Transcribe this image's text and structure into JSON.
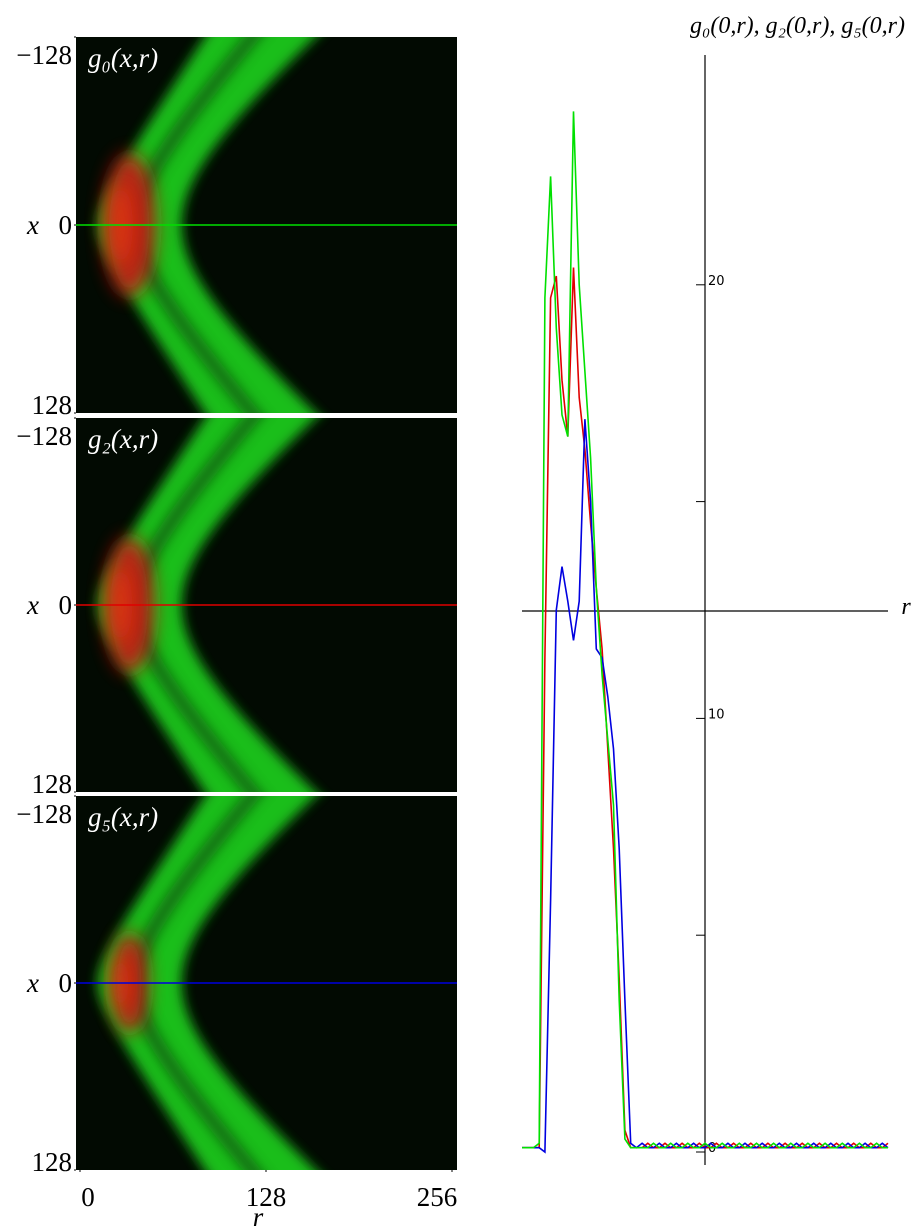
{
  "chart_data": [
    {
      "type": "heatmap",
      "title": "g₀(x,r)",
      "ylabel": "x",
      "ylim": [
        -128,
        128
      ],
      "yticks": [
        {
          "value": -128,
          "label": "−128"
        },
        0,
        128
      ],
      "slice_color": "#00e000"
    },
    {
      "type": "heatmap",
      "title": "g₂(x,r)",
      "ylabel": "x",
      "ylim": [
        -128,
        128
      ],
      "yticks": [
        {
          "value": -128,
          "label": "−128"
        },
        0,
        128
      ],
      "slice_color": "#e00000"
    },
    {
      "type": "heatmap",
      "title": "g₅(x,r)",
      "ylabel": "x",
      "xlabel": "r",
      "ylim": [
        -128,
        128
      ],
      "yticks": [
        {
          "value": -128,
          "label": "−128"
        },
        0,
        128
      ],
      "xlim": [
        0,
        256
      ],
      "xticks": [
        0,
        128,
        256
      ],
      "slice_color": "#0000e0"
    },
    {
      "type": "line",
      "title": "g₀(0,r), g₂(0,r), g₅(0,r)",
      "xlabel": "r",
      "xlim": [
        0,
        256
      ],
      "ylim": [
        -0.3,
        25.3
      ],
      "yticks": [
        0,
        10,
        20
      ],
      "minor_yticks": [
        5,
        15
      ],
      "x": [
        0,
        4,
        8,
        12,
        16,
        20,
        24,
        28,
        32,
        36,
        40,
        44,
        48,
        52,
        56,
        60,
        64,
        68,
        72,
        76,
        80,
        84,
        88,
        92,
        96,
        100,
        104,
        108,
        112,
        116,
        120,
        124,
        128,
        132,
        136,
        140,
        144,
        148,
        152,
        156,
        160,
        164,
        168,
        172,
        176,
        180,
        184,
        188,
        192,
        196,
        200,
        204,
        208,
        212,
        216,
        220,
        224,
        228,
        232,
        236,
        240,
        244,
        248,
        252,
        256
      ],
      "series": [
        {
          "name": "g₂(0,r)",
          "color": "#e00000",
          "values": [
            0.1,
            0.1,
            0.1,
            0.1,
            11.4,
            19.7,
            20.2,
            17.8,
            16.5,
            20.4,
            17.4,
            16.2,
            14.5,
            13,
            11.6,
            9.3,
            7,
            4,
            0.5,
            0.1,
            0.1,
            0.1,
            0.2,
            0.1,
            0.1,
            0.2,
            0.1,
            0.1,
            0.2,
            0.1,
            0.1,
            0.2,
            0.1,
            0.1,
            0.2,
            0.1,
            0.1,
            0.2,
            0.1,
            0.1,
            0.2,
            0.1,
            0.1,
            0.2,
            0.1,
            0.1,
            0.2,
            0.1,
            0.1,
            0.2,
            0.1,
            0.1,
            0.2,
            0.1,
            0.1,
            0.2,
            0.1,
            0.1,
            0.2,
            0.1,
            0.1,
            0.2,
            0.1,
            0.1,
            0.2
          ]
        },
        {
          "name": "g₅(0,r)",
          "color": "#0000e0",
          "values": [
            0.1,
            0.1,
            0.1,
            0.1,
            0,
            5.8,
            12.5,
            13.5,
            12.7,
            11.8,
            12.7,
            16.9,
            15,
            11.6,
            11.4,
            10.5,
            9.3,
            7,
            3.5,
            0.2,
            0.1,
            0.2,
            0.1,
            0.1,
            0.2,
            0.1,
            0.1,
            0.2,
            0.1,
            0.1,
            0.2,
            0.1,
            0.1,
            0.2,
            0.1,
            0.1,
            0.2,
            0.1,
            0.1,
            0.2,
            0.1,
            0.1,
            0.2,
            0.1,
            0.1,
            0.2,
            0.1,
            0.1,
            0.2,
            0.1,
            0.1,
            0.2,
            0.1,
            0.1,
            0.2,
            0.1,
            0.1,
            0.2,
            0.1,
            0.1,
            0.2,
            0.1,
            0.1,
            0.2,
            0.1
          ]
        },
        {
          "name": "g₀(0,r)",
          "color": "#00e000",
          "values": [
            0.1,
            0.1,
            0.1,
            0.2,
            19.7,
            22.5,
            19,
            17,
            16.5,
            24,
            20,
            18,
            16,
            13,
            11,
            9.5,
            8,
            3.5,
            0.3,
            0.1,
            0.1,
            0.1,
            0.1,
            0.2,
            0.1,
            0.1,
            0.2,
            0.1,
            0.1,
            0.2,
            0.1,
            0.1,
            0.2,
            0.1,
            0.1,
            0.2,
            0.1,
            0.1,
            0.2,
            0.1,
            0.1,
            0.2,
            0.1,
            0.1,
            0.2,
            0.1,
            0.1,
            0.2,
            0.1,
            0.1,
            0.2,
            0.1,
            0.1,
            0.2,
            0.1,
            0.1,
            0.2,
            0.1,
            0.1,
            0.2,
            0.1,
            0.1,
            0.2,
            0.1,
            0.1
          ]
        }
      ]
    }
  ]
}
